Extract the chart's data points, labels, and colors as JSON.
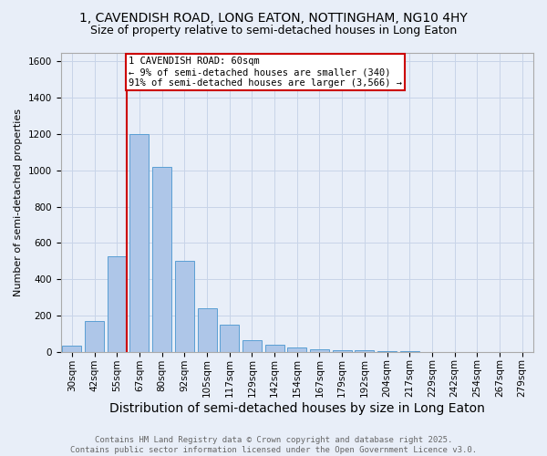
{
  "title_line1": "1, CAVENDISH ROAD, LONG EATON, NOTTINGHAM, NG10 4HY",
  "title_line2": "Size of property relative to semi-detached houses in Long Eaton",
  "xlabel": "Distribution of semi-detached houses by size in Long Eaton",
  "ylabel": "Number of semi-detached properties",
  "categories": [
    "30sqm",
    "42sqm",
    "55sqm",
    "67sqm",
    "80sqm",
    "92sqm",
    "105sqm",
    "117sqm",
    "129sqm",
    "142sqm",
    "154sqm",
    "167sqm",
    "179sqm",
    "192sqm",
    "204sqm",
    "217sqm",
    "229sqm",
    "242sqm",
    "254sqm",
    "267sqm",
    "279sqm"
  ],
  "values": [
    35,
    170,
    525,
    1200,
    1020,
    500,
    240,
    150,
    65,
    38,
    25,
    15,
    10,
    7,
    2,
    1,
    0,
    0,
    0,
    0,
    0
  ],
  "bar_color": "#aec6e8",
  "bar_edge_color": "#5a9fd4",
  "red_line_bin_index": 2,
  "annotation_text": "1 CAVENDISH ROAD: 60sqm\n← 9% of semi-detached houses are smaller (340)\n91% of semi-detached houses are larger (3,566) →",
  "annotation_box_color": "#ffffff",
  "annotation_border_color": "#cc0000",
  "vline_color": "#cc0000",
  "ylim": [
    0,
    1650
  ],
  "yticks": [
    0,
    200,
    400,
    600,
    800,
    1000,
    1200,
    1400,
    1600
  ],
  "grid_color": "#c8d4e8",
  "background_color": "#e8eef8",
  "footnote": "Contains HM Land Registry data © Crown copyright and database right 2025.\nContains public sector information licensed under the Open Government Licence v3.0.",
  "title_fontsize": 10,
  "subtitle_fontsize": 9,
  "ylabel_fontsize": 8,
  "xlabel_fontsize": 10,
  "tick_fontsize": 7.5,
  "annotation_fontsize": 7.5,
  "footnote_fontsize": 6.5
}
